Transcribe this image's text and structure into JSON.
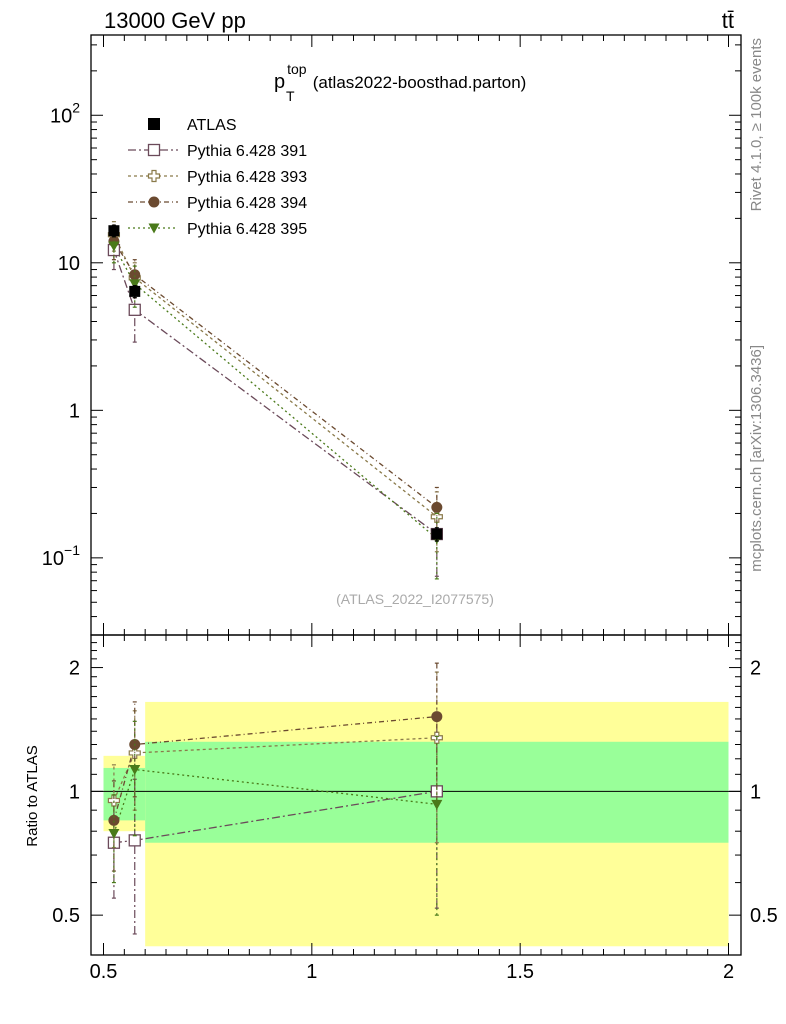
{
  "header": {
    "left": "13000 GeV pp",
    "right": "tt̄"
  },
  "side_labels": {
    "rivet": "Rivet 4.1.0, ≥ 100k events",
    "mcplots": "mcplots.cern.ch [arXiv:1306.3436]"
  },
  "chart_data": [
    {
      "type": "line",
      "title_main": "p",
      "title_sup": "top",
      "title_sub": "T",
      "title_rest": " (atlas2022-boosthad.parton)",
      "watermark": "(ATLAS_2022_I2077575)",
      "y_scale": "log",
      "ylim": [
        0.03,
        350
      ],
      "xlim": [
        0.47,
        2.03
      ],
      "ytick_labels": [
        {
          "value": 100,
          "base": "10",
          "exp": "2"
        },
        {
          "value": 10,
          "base": "10",
          "exp": ""
        },
        {
          "value": 1,
          "base": "1",
          "exp": ""
        },
        {
          "value": 0.1,
          "base": "10",
          "exp": "−1"
        }
      ],
      "legend_position": "top-left",
      "data": {
        "name": "ATLAS",
        "color": "#000000",
        "points": [
          {
            "x": 0.525,
            "y": 16.5,
            "ylo": 15.0,
            "yhi": 18.0
          },
          {
            "x": 0.575,
            "y": 6.4,
            "ylo": 5.8,
            "yhi": 7.0
          },
          {
            "x": 1.3,
            "y": 0.145,
            "ylo": 0.13,
            "yhi": 0.16
          }
        ]
      },
      "series": [
        {
          "name": "Pythia 6.428 391",
          "color": "#6b4a5a",
          "marker": "open-square",
          "dash": "8,3,2,3",
          "points": [
            {
              "x": 0.525,
              "y": 12.2,
              "ylo": 9.0,
              "yhi": 16.0
            },
            {
              "x": 0.575,
              "y": 4.8,
              "ylo": 2.9,
              "yhi": 6.8
            },
            {
              "x": 1.3,
              "y": 0.145,
              "ylo": 0.075,
              "yhi": 0.22
            }
          ]
        },
        {
          "name": "Pythia 6.428 393",
          "color": "#8a7a4a",
          "marker": "open-cross",
          "dash": "3,3",
          "points": [
            {
              "x": 0.525,
              "y": 15.5,
              "ylo": 12.0,
              "yhi": 19.0
            },
            {
              "x": 0.575,
              "y": 7.9,
              "ylo": 5.8,
              "yhi": 10.0
            },
            {
              "x": 1.3,
              "y": 0.19,
              "ylo": 0.11,
              "yhi": 0.28
            }
          ]
        },
        {
          "name": "Pythia 6.428 394",
          "color": "#6b4a30",
          "marker": "filled-circle",
          "dash": "5,3,1,3",
          "points": [
            {
              "x": 0.525,
              "y": 14.0,
              "ylo": 10.5,
              "yhi": 17.5
            },
            {
              "x": 0.575,
              "y": 8.3,
              "ylo": 6.2,
              "yhi": 10.5
            },
            {
              "x": 1.3,
              "y": 0.22,
              "ylo": 0.14,
              "yhi": 0.3
            }
          ]
        },
        {
          "name": "Pythia 6.428 395",
          "color": "#4a7a1a",
          "marker": "filled-triangle-down",
          "dash": "2,3,2,3",
          "points": [
            {
              "x": 0.525,
              "y": 13.0,
              "ylo": 10.0,
              "yhi": 16.5
            },
            {
              "x": 0.575,
              "y": 7.2,
              "ylo": 5.0,
              "yhi": 9.5
            },
            {
              "x": 1.3,
              "y": 0.135,
              "ylo": 0.072,
              "yhi": 0.2
            }
          ]
        }
      ]
    },
    {
      "type": "line",
      "ylabel": "Ratio to ATLAS",
      "y_scale": "log",
      "ylim": [
        0.4,
        2.4
      ],
      "xlim": [
        0.47,
        2.03
      ],
      "ytick_labels": [
        {
          "value": 2,
          "text": "2"
        },
        {
          "value": 1,
          "text": "1"
        },
        {
          "value": 0.5,
          "text": "0.5"
        }
      ],
      "xtick_labels": [
        {
          "value": 0.5,
          "text": "0.5"
        },
        {
          "value": 1,
          "text": "1"
        },
        {
          "value": 1.5,
          "text": "1.5"
        },
        {
          "value": 2,
          "text": "2"
        }
      ],
      "bands": [
        {
          "x0": 0.5,
          "x1": 0.6,
          "yellow": [
            0.8,
            1.22
          ],
          "green": [
            0.85,
            1.14
          ]
        },
        {
          "x0": 0.6,
          "x1": 2.0,
          "yellow": [
            0.42,
            1.65
          ],
          "green": [
            0.75,
            1.32
          ]
        }
      ],
      "band_colors": {
        "yellow": "#ffff99",
        "green": "#99ff99"
      },
      "series": [
        {
          "name": "Pythia 6.428 391",
          "points": [
            {
              "x": 0.525,
              "y": 0.75,
              "ylo": 0.55,
              "yhi": 0.95
            },
            {
              "x": 0.575,
              "y": 0.76,
              "ylo": 0.45,
              "yhi": 1.07
            },
            {
              "x": 1.3,
              "y": 1.0,
              "ylo": 0.52,
              "yhi": 1.5
            }
          ]
        },
        {
          "name": "Pythia 6.428 393",
          "points": [
            {
              "x": 0.525,
              "y": 0.95,
              "ylo": 0.73,
              "yhi": 1.16
            },
            {
              "x": 0.575,
              "y": 1.24,
              "ylo": 0.9,
              "yhi": 1.57
            },
            {
              "x": 1.3,
              "y": 1.35,
              "ylo": 0.75,
              "yhi": 1.95
            }
          ]
        },
        {
          "name": "Pythia 6.428 394",
          "points": [
            {
              "x": 0.525,
              "y": 0.85,
              "ylo": 0.64,
              "yhi": 1.06
            },
            {
              "x": 0.575,
              "y": 1.3,
              "ylo": 0.97,
              "yhi": 1.65
            },
            {
              "x": 1.3,
              "y": 1.52,
              "ylo": 0.95,
              "yhi": 2.05
            }
          ]
        },
        {
          "name": "Pythia 6.428 395",
          "points": [
            {
              "x": 0.525,
              "y": 0.79,
              "ylo": 0.6,
              "yhi": 0.98
            },
            {
              "x": 0.575,
              "y": 1.13,
              "ylo": 0.78,
              "yhi": 1.48
            },
            {
              "x": 1.3,
              "y": 0.93,
              "ylo": 0.5,
              "yhi": 1.36
            }
          ]
        }
      ]
    }
  ]
}
